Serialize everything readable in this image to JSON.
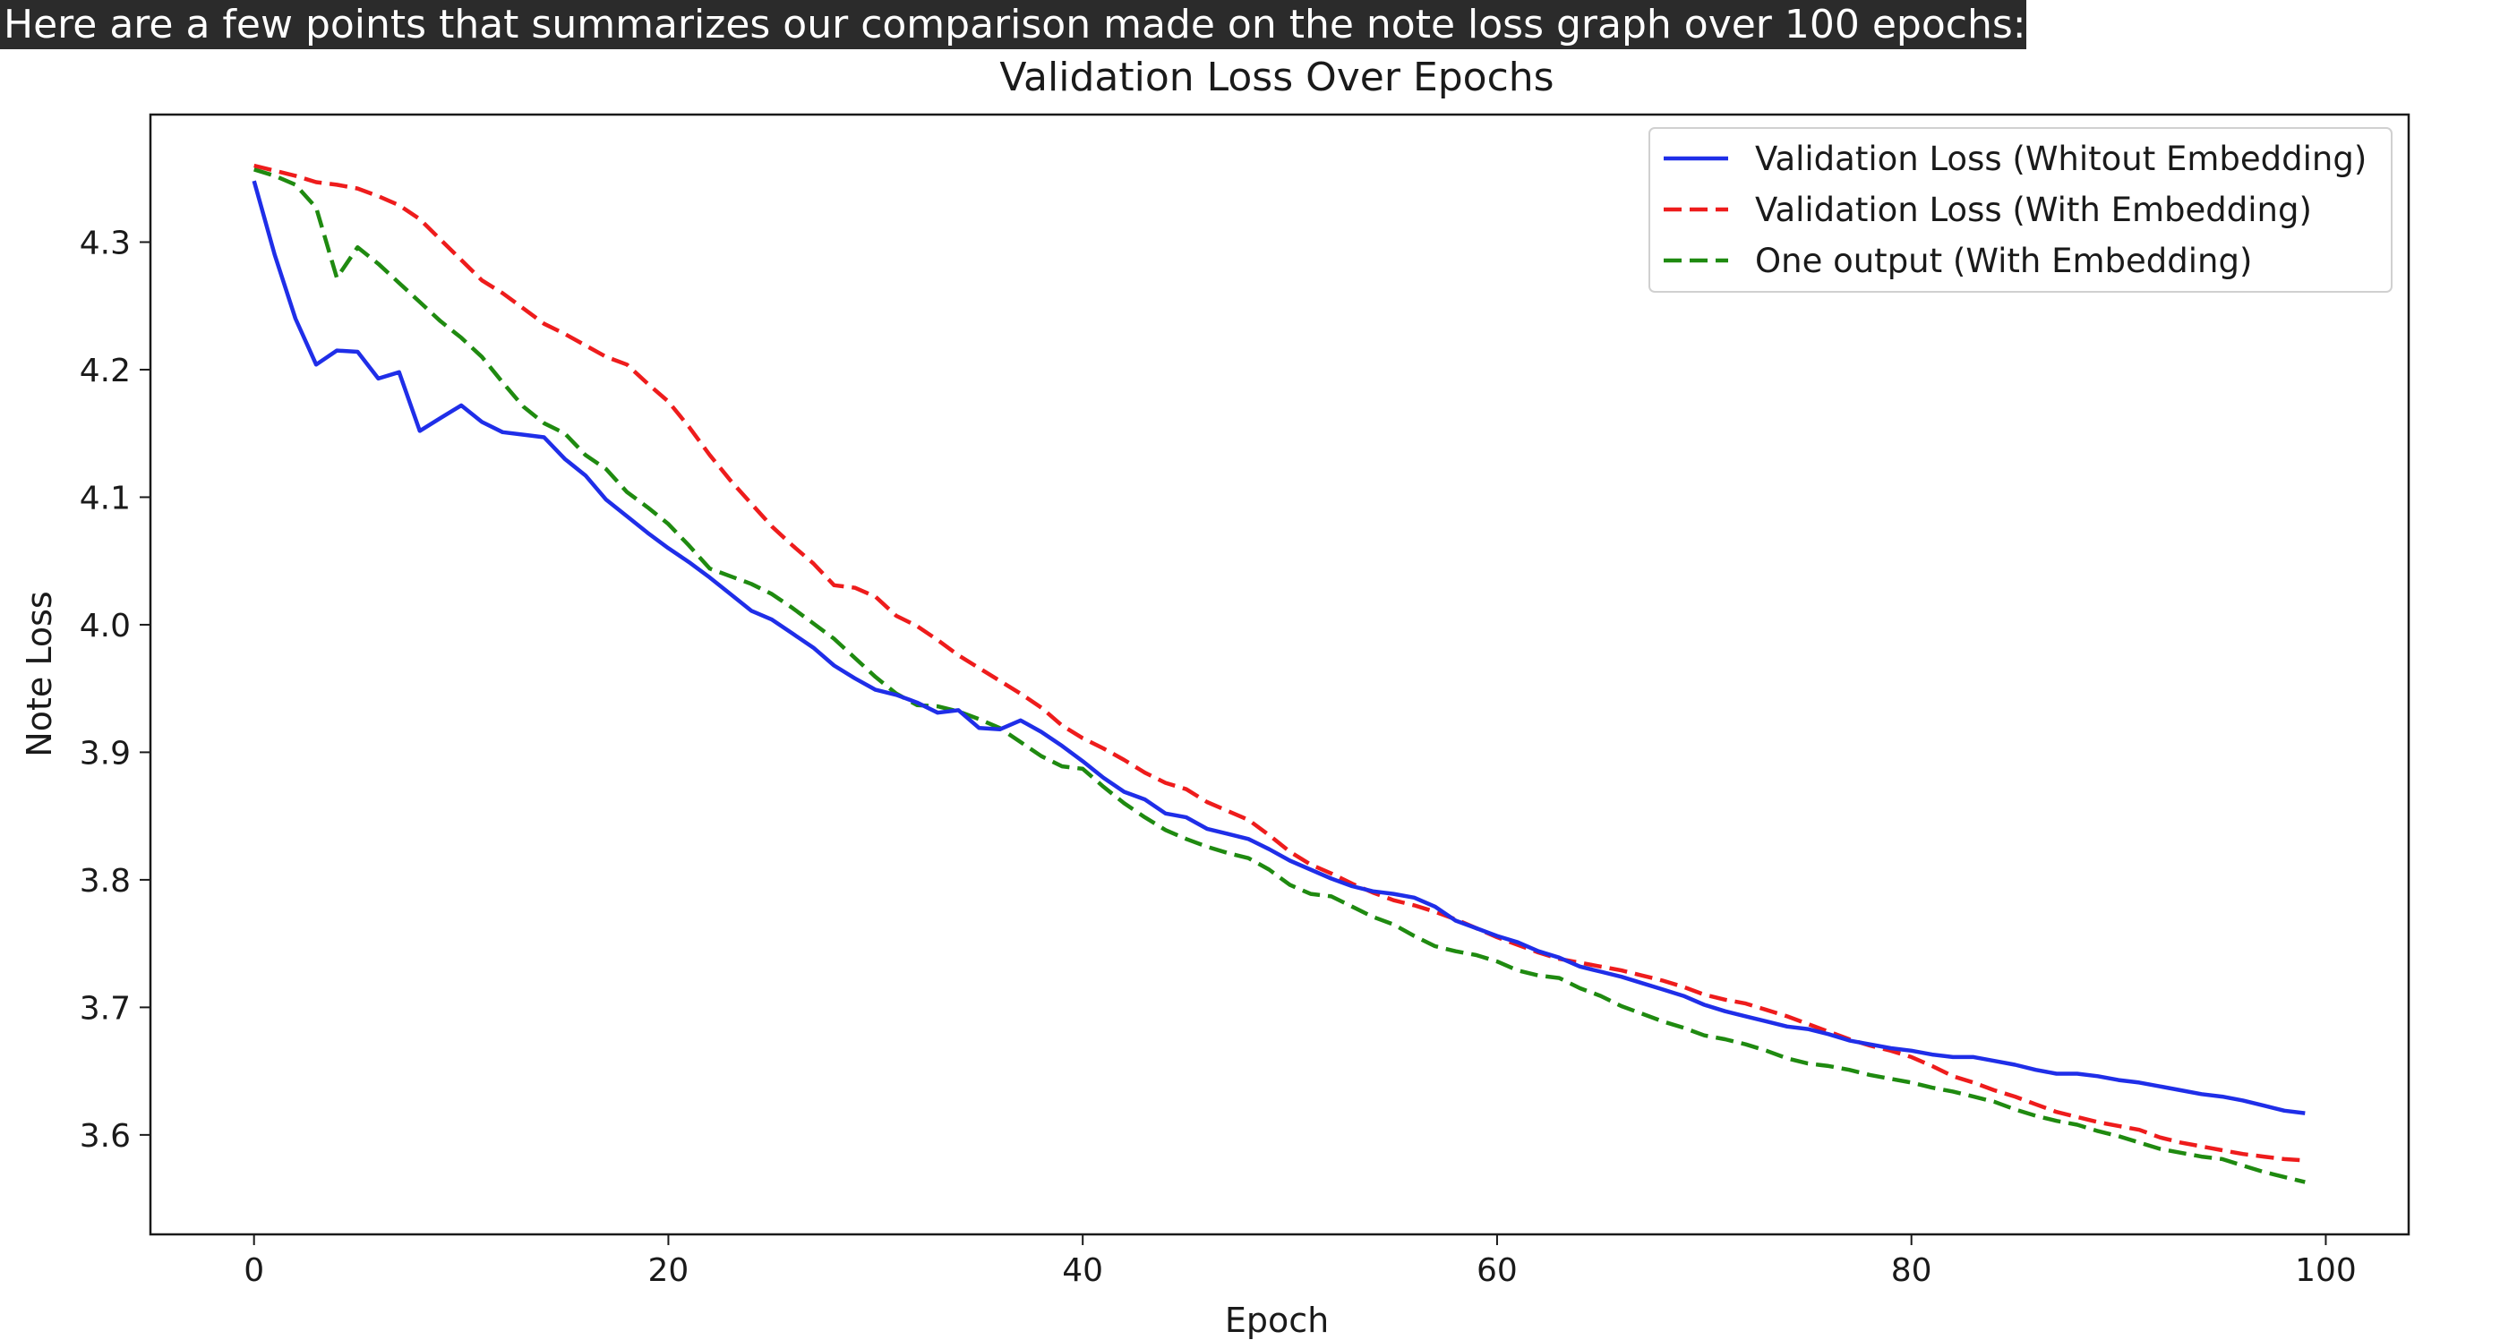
{
  "header": {
    "text": "Here are a few points that summarizes our comparison made on the note loss graph over 100 epochs:"
  },
  "colors": {
    "header_bg": "#2b2b2b",
    "blue": "#1f2ee8",
    "red": "#ee1c1c",
    "green": "#1f8a10"
  },
  "chart_data": {
    "type": "line",
    "title": "Validation Loss Over Epochs",
    "xlabel": "Epoch",
    "ylabel": "Note Loss",
    "xlim": [
      -5,
      104
    ],
    "ylim": [
      3.522,
      4.4
    ],
    "xticks": [
      0,
      20,
      40,
      60,
      80,
      100
    ],
    "yticks": [
      3.6,
      3.7,
      3.8,
      3.9,
      4.0,
      4.1,
      4.2,
      4.3
    ],
    "grid": false,
    "legend_position": "top-right",
    "series": [
      {
        "name": "Validation Loss (Whitout Embedding)",
        "color": "#1f2ee8",
        "style": "solid",
        "values": [
          4.348,
          4.29,
          4.24,
          4.204,
          4.215,
          4.214,
          4.193,
          4.198,
          4.152,
          4.162,
          4.172,
          4.159,
          4.151,
          4.149,
          4.147,
          4.13,
          4.117,
          4.098,
          4.085,
          4.072,
          4.06,
          4.049,
          4.037,
          4.024,
          4.011,
          4.004,
          3.993,
          3.982,
          3.968,
          3.958,
          3.949,
          3.945,
          3.939,
          3.931,
          3.933,
          3.919,
          3.918,
          3.925,
          3.916,
          3.905,
          3.893,
          3.88,
          3.869,
          3.863,
          3.852,
          3.849,
          3.84,
          3.836,
          3.832,
          3.824,
          3.815,
          3.808,
          3.801,
          3.795,
          3.791,
          3.789,
          3.786,
          3.779,
          3.768,
          3.762,
          3.756,
          3.751,
          3.744,
          3.739,
          3.732,
          3.728,
          3.724,
          3.719,
          3.714,
          3.709,
          3.702,
          3.697,
          3.693,
          3.689,
          3.685,
          3.683,
          3.679,
          3.674,
          3.671,
          3.668,
          3.666,
          3.663,
          3.661,
          3.661,
          3.658,
          3.655,
          3.651,
          3.648,
          3.648,
          3.646,
          3.643,
          3.641,
          3.638,
          3.635,
          3.632,
          3.63,
          3.627,
          3.623,
          3.619,
          3.617
        ]
      },
      {
        "name": "Validation Loss (With Embedding)",
        "color": "#ee1c1c",
        "style": "dashed",
        "values": [
          4.36,
          4.356,
          4.352,
          4.347,
          4.345,
          4.342,
          4.336,
          4.329,
          4.318,
          4.302,
          4.286,
          4.27,
          4.26,
          4.248,
          4.236,
          4.228,
          4.219,
          4.21,
          4.204,
          4.189,
          4.175,
          4.155,
          4.133,
          4.113,
          4.095,
          4.077,
          4.062,
          4.048,
          4.031,
          4.029,
          4.022,
          4.007,
          3.999,
          3.988,
          3.976,
          3.966,
          3.956,
          3.946,
          3.935,
          3.921,
          3.911,
          3.903,
          3.894,
          3.884,
          3.876,
          3.871,
          3.861,
          3.854,
          3.847,
          3.835,
          3.822,
          3.812,
          3.805,
          3.797,
          3.79,
          3.784,
          3.78,
          3.775,
          3.769,
          3.762,
          3.755,
          3.749,
          3.743,
          3.738,
          3.735,
          3.732,
          3.729,
          3.725,
          3.721,
          3.716,
          3.71,
          3.706,
          3.703,
          3.698,
          3.693,
          3.687,
          3.681,
          3.675,
          3.67,
          3.666,
          3.661,
          3.654,
          3.646,
          3.641,
          3.635,
          3.63,
          3.624,
          3.618,
          3.614,
          3.61,
          3.607,
          3.604,
          3.598,
          3.594,
          3.591,
          3.588,
          3.585,
          3.583,
          3.581,
          3.58
        ]
      },
      {
        "name": "One output (With Embedding)",
        "color": "#1f8a10",
        "style": "dashed",
        "values": [
          4.357,
          4.352,
          4.345,
          4.327,
          4.272,
          4.296,
          4.283,
          4.268,
          4.253,
          4.238,
          4.225,
          4.21,
          4.19,
          4.171,
          4.158,
          4.15,
          4.133,
          4.122,
          4.104,
          4.092,
          4.079,
          4.062,
          4.044,
          4.038,
          4.032,
          4.024,
          4.013,
          4.001,
          3.989,
          3.974,
          3.959,
          3.946,
          3.937,
          3.936,
          3.932,
          3.926,
          3.919,
          3.908,
          3.897,
          3.889,
          3.887,
          3.873,
          3.86,
          3.849,
          3.839,
          3.832,
          3.826,
          3.821,
          3.817,
          3.808,
          3.796,
          3.789,
          3.787,
          3.779,
          3.771,
          3.765,
          3.756,
          3.748,
          3.744,
          3.741,
          3.736,
          3.729,
          3.725,
          3.723,
          3.715,
          3.709,
          3.701,
          3.695,
          3.689,
          3.684,
          3.678,
          3.675,
          3.671,
          3.666,
          3.66,
          3.656,
          3.654,
          3.651,
          3.647,
          3.644,
          3.641,
          3.637,
          3.634,
          3.63,
          3.626,
          3.62,
          3.615,
          3.611,
          3.608,
          3.603,
          3.599,
          3.594,
          3.589,
          3.586,
          3.583,
          3.581,
          3.576,
          3.571,
          3.567,
          3.563
        ]
      }
    ]
  }
}
